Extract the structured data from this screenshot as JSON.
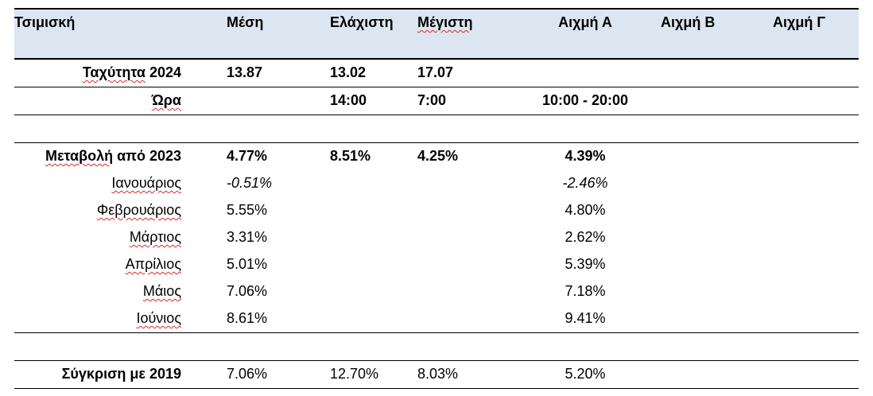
{
  "header": {
    "corner": "Τσιμισκή",
    "col_mean": "Μέση",
    "col_min": "Ελάχιστη",
    "col_max": "Μέγιστη",
    "col_peak_a": "Αιχμή Α",
    "col_peak_b": "Αιχμή Β",
    "col_peak_c": "Αιχμή Γ"
  },
  "speed": {
    "label_word": "Ταχύτητα",
    "label_year": " 2024",
    "mean": "13.87",
    "min": "13.02",
    "max": "17.07"
  },
  "hour": {
    "label": "Ώρα",
    "min": "14:00",
    "max": "7:00",
    "peak_a": "10:00 - 20:00"
  },
  "change": {
    "label_word": "Μεταβολή",
    "label_rest": " από 2023",
    "mean": "4.77%",
    "min": "8.51%",
    "max": "4.25%",
    "peak_a": "4.39%"
  },
  "months": [
    {
      "name": "Ιανουάριος",
      "mean": "-0.51%",
      "peak_a": "-2.46%"
    },
    {
      "name": "Φεβρουάριος",
      "mean": "5.55%",
      "peak_a": "4.80%"
    },
    {
      "name": "Μάρτιος",
      "mean": "3.31%",
      "peak_a": "2.62%"
    },
    {
      "name": "Απρίλιος",
      "mean": "5.01%",
      "peak_a": "5.39%"
    },
    {
      "name": "Μάιος",
      "mean": "7.06%",
      "peak_a": "7.18%"
    },
    {
      "name": "Ιούνιος",
      "mean": "8.61%",
      "peak_a": "9.41%"
    }
  ],
  "compare": {
    "label": "Σύγκριση με 2019",
    "mean": "7.06%",
    "min": "12.70%",
    "max": "8.03%",
    "peak_a": "5.20%"
  }
}
